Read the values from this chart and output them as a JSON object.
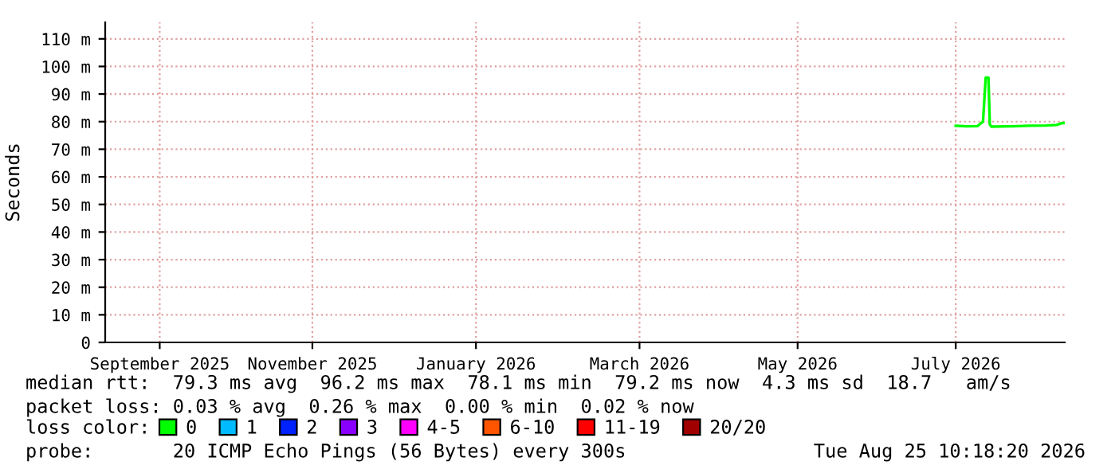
{
  "chart_data": {
    "type": "line",
    "ylabel": "Seconds",
    "legend_title": "loss color:",
    "legend": "bottom",
    "grid": true,
    "marker": "none",
    "line_style": "solid",
    "x": [
      "2026-07-16",
      "2026-07-20",
      "2026-07-24",
      "2026-07-26",
      "2026-07-26T12:00",
      "2026-07-27",
      "2026-07-28",
      "2026-07-28T12:00",
      "2026-07-29",
      "2026-08-05",
      "2026-08-12",
      "2026-08-18",
      "2026-08-22",
      "2026-08-24",
      "2026-08-25"
    ],
    "series": [
      {
        "name": "0",
        "color": "#00ff00",
        "values": [
          78.5,
          78.3,
          78.4,
          80,
          88,
          96,
          96,
          79,
          78.2,
          78.3,
          78.5,
          78.6,
          78.8,
          79.5,
          79.5
        ]
      },
      {
        "name": "1",
        "color": "#00bbff",
        "values": [
          null,
          null,
          null,
          null,
          null,
          null,
          null,
          null,
          null,
          null,
          null,
          null,
          null,
          null,
          null
        ]
      },
      {
        "name": "2",
        "color": "#0022ff",
        "values": [
          null,
          null,
          null,
          null,
          null,
          null,
          null,
          null,
          null,
          null,
          null,
          null,
          null,
          null,
          null
        ]
      },
      {
        "name": "3",
        "color": "#8a00ff",
        "values": [
          null,
          null,
          null,
          null,
          null,
          null,
          null,
          null,
          null,
          null,
          null,
          null,
          null,
          null,
          null
        ]
      },
      {
        "name": "4-5",
        "color": "#ff00ff",
        "values": [
          null,
          null,
          null,
          null,
          null,
          null,
          null,
          null,
          null,
          null,
          null,
          null,
          null,
          null,
          null
        ]
      },
      {
        "name": "6-10",
        "color": "#ff5500",
        "values": [
          null,
          null,
          null,
          null,
          null,
          null,
          null,
          null,
          null,
          null,
          null,
          null,
          null,
          null,
          null
        ]
      },
      {
        "name": "11-19",
        "color": "#ff0000",
        "values": [
          null,
          null,
          null,
          null,
          null,
          null,
          null,
          null,
          null,
          null,
          null,
          null,
          null,
          null,
          null
        ]
      },
      {
        "name": "20/20",
        "color": "#a10000",
        "values": [
          null,
          null,
          null,
          null,
          null,
          null,
          null,
          null,
          null,
          null,
          null,
          null,
          null,
          null,
          null
        ]
      }
    ],
    "xlim": [
      "2025-09-07",
      "2026-08-25"
    ],
    "xticks": [
      {
        "value": "2025-09-27",
        "label": "September 2025"
      },
      {
        "value": "2025-11-22",
        "label": "November 2025"
      },
      {
        "value": "2026-01-21",
        "label": "January 2026"
      },
      {
        "value": "2026-03-22",
        "label": "March 2026"
      },
      {
        "value": "2026-05-19",
        "label": "May 2026"
      },
      {
        "value": "2026-07-16",
        "label": "July 2026"
      }
    ],
    "ylim": [
      0,
      116
    ],
    "yticks": [
      0,
      {
        "value": 10,
        "label": "10 m"
      },
      {
        "value": 20,
        "label": "20 m"
      },
      {
        "value": 30,
        "label": "30 m"
      },
      {
        "value": 40,
        "label": "40 m"
      },
      {
        "value": 50,
        "label": "50 m"
      },
      {
        "value": 60,
        "label": "60 m"
      },
      {
        "value": 70,
        "label": "70 m"
      },
      {
        "value": 80,
        "label": "80 m"
      },
      {
        "value": 90,
        "label": "90 m"
      },
      {
        "value": 100,
        "label": "100 m"
      },
      {
        "value": 110,
        "label": "110 m"
      }
    ],
    "annotations": [
      "median rtt:  79.3 ms avg  96.2 ms max  78.1 ms min  79.2 ms now  4.3 ms sd  18.7   am/s",
      "packet loss: 0.03 % avg  0.26 % max  0.00 % min  0.02 % now",
      "probe:       20 ICMP Echo Pings (56 Bytes) every 300s",
      "Tue Aug 25 10:18:20 2026"
    ]
  }
}
